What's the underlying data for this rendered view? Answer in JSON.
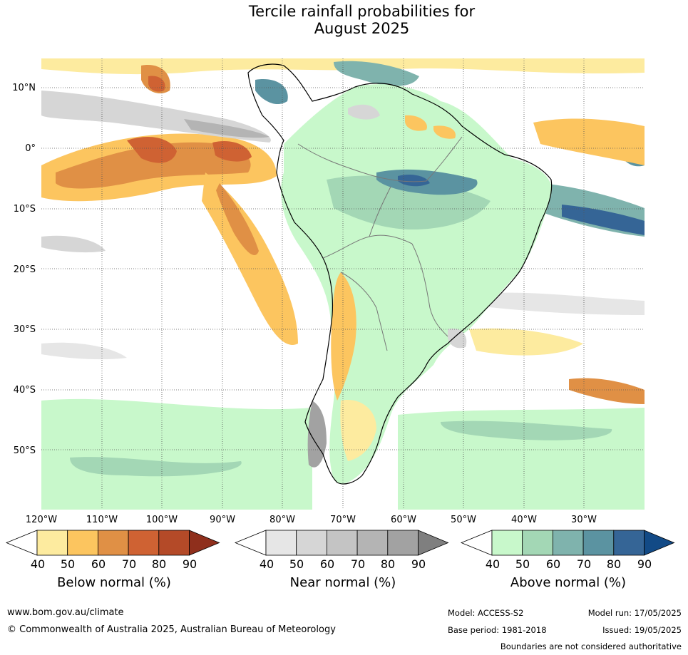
{
  "title": {
    "line1": "Tercile rainfall probabilities for",
    "line2": "August 2025"
  },
  "latitude_labels": [
    "10°N",
    "0°",
    "10°S",
    "20°S",
    "30°S",
    "40°S",
    "50°S"
  ],
  "longitude_labels": [
    "120°W",
    "110°W",
    "100°W",
    "90°W",
    "80°W",
    "70°W",
    "60°W",
    "50°W",
    "40°W",
    "30°W"
  ],
  "colorbars": [
    {
      "name": "Below normal (%)",
      "ticks": [
        "40",
        "50",
        "60",
        "70",
        "80",
        "90"
      ],
      "colors": [
        "#ffffff",
        "#fdeb9f",
        "#fcc55f",
        "#e09045",
        "#cf6233",
        "#b44a28",
        "#8f2f1c"
      ]
    },
    {
      "name": "Near normal (%)",
      "ticks": [
        "40",
        "50",
        "60",
        "70",
        "80",
        "90"
      ],
      "colors": [
        "#ffffff",
        "#e6e6e6",
        "#d6d6d6",
        "#c4c4c4",
        "#b4b4b4",
        "#a2a2a2",
        "#7f7f7f"
      ]
    },
    {
      "name": "Above normal (%)",
      "ticks": [
        "40",
        "50",
        "60",
        "70",
        "80",
        "90"
      ],
      "colors": [
        "#ffffff",
        "#c8f8cb",
        "#a3d7b5",
        "#7fb3ad",
        "#5b93a1",
        "#356596",
        "#124a86"
      ]
    }
  ],
  "footer": {
    "website": "www.bom.gov.au/climate",
    "copyright": "© Commonwealth of Australia 2025, Australian Bureau of Meteorology",
    "model": "Model: ACCESS-S2",
    "base_period": "Base period: 1981-2018",
    "model_run": "Model run: 17/05/2025",
    "issued": "Issued: 19/05/2025",
    "disclaimer": "Boundaries are not considered authoritative"
  }
}
